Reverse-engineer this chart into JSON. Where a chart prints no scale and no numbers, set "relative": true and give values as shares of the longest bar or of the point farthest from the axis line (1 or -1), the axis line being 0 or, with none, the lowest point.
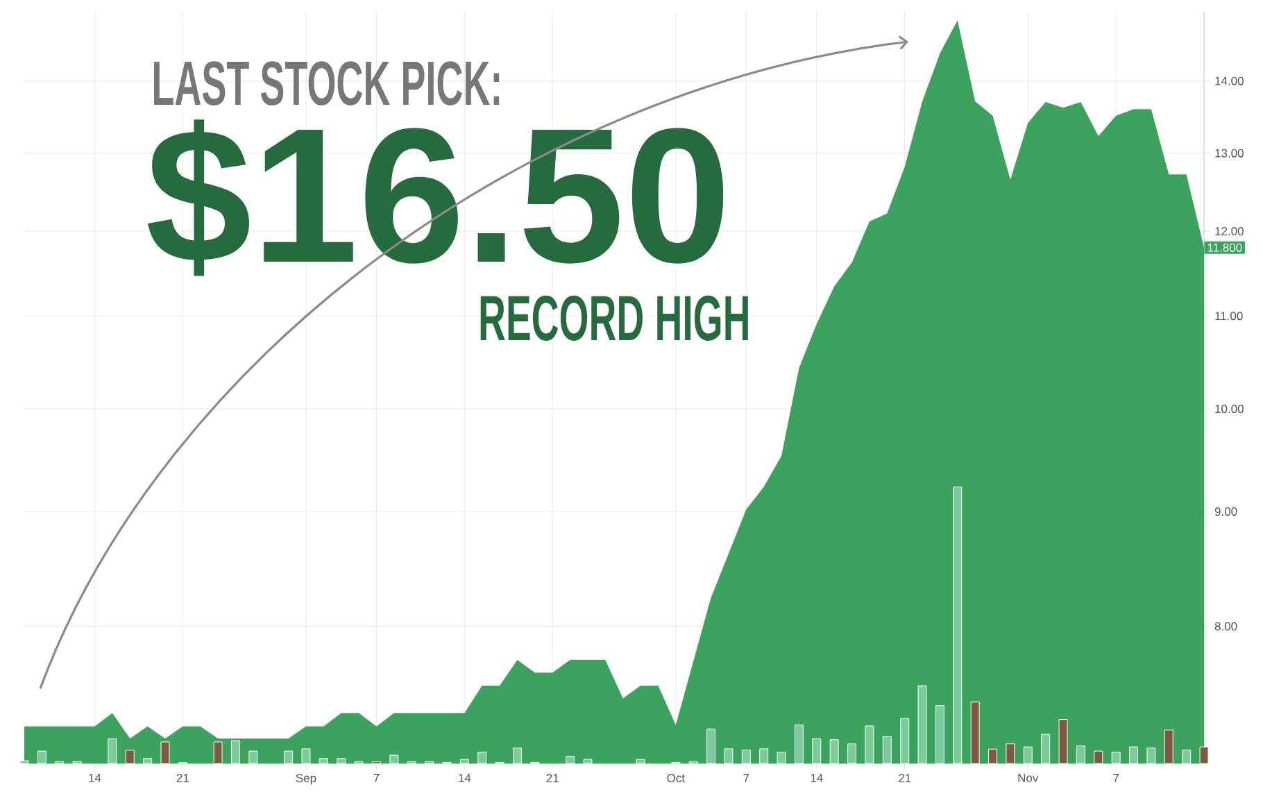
{
  "chart_data": [
    {
      "type": "area",
      "color": "#3ca35e",
      "log": true,
      "grid": true,
      "categories": [
        null,
        null,
        null,
        null,
        "14",
        null,
        null,
        null,
        null,
        "21",
        null,
        null,
        null,
        null,
        null,
        null,
        "Sep",
        null,
        null,
        null,
        "7",
        null,
        null,
        null,
        null,
        "14",
        null,
        null,
        null,
        null,
        "21",
        null,
        null,
        null,
        null,
        null,
        null,
        "Oct",
        null,
        null,
        null,
        "7",
        null,
        null,
        null,
        "14",
        null,
        null,
        null,
        null,
        "21",
        null,
        null,
        null,
        null,
        null,
        null,
        "Nov",
        null,
        null,
        null,
        null,
        "7",
        null,
        null,
        null,
        null,
        null
      ],
      "values": [
        7.22,
        7.22,
        7.22,
        7.22,
        7.22,
        7.32,
        7.13,
        7.22,
        7.13,
        7.22,
        7.22,
        7.13,
        7.13,
        7.13,
        7.13,
        7.13,
        7.22,
        7.22,
        7.32,
        7.32,
        7.22,
        7.32,
        7.32,
        7.32,
        7.32,
        7.32,
        7.53,
        7.53,
        7.73,
        7.63,
        7.63,
        7.73,
        7.73,
        7.73,
        7.43,
        7.53,
        7.53,
        7.23,
        7.72,
        8.24,
        8.62,
        9.02,
        9.23,
        9.53,
        10.43,
        10.91,
        11.34,
        11.62,
        12.12,
        12.22,
        12.82,
        13.71,
        14.4,
        14.9,
        13.71,
        13.51,
        12.65,
        13.41,
        13.7,
        13.62,
        13.7,
        13.23,
        13.51,
        13.6,
        13.6,
        12.72,
        12.72,
        11.8
      ],
      "ylim": [
        6.95,
        15.03
      ],
      "yticks": [
        {
          "value": 8,
          "label": "8.00"
        },
        {
          "value": 9,
          "label": "9.00"
        },
        {
          "value": 10,
          "label": "10.00"
        },
        {
          "value": 11,
          "label": "11.00"
        },
        {
          "value": 12,
          "label": "12.00"
        },
        {
          "value": 13,
          "label": "13.00"
        },
        {
          "value": 14,
          "label": "14.00"
        }
      ],
      "annotations": [
        "LAST STOCK PICK:",
        "$16.50",
        "RECORD HIGH",
        "11.800"
      ]
    },
    {
      "type": "bar",
      "relative": true,
      "tick_labels": false,
      "categories": [
        null,
        null,
        null,
        null,
        null,
        null,
        null,
        null,
        null,
        null,
        null,
        null,
        null,
        null,
        null,
        null,
        null,
        null,
        null,
        null,
        null,
        null,
        null,
        null,
        null,
        null,
        null,
        null,
        null,
        null,
        null,
        null,
        null,
        null,
        null,
        null,
        null,
        null,
        null,
        null,
        null,
        null,
        null,
        null,
        null,
        null,
        null,
        null,
        null,
        null,
        null,
        null,
        null,
        null,
        null,
        null,
        null,
        null,
        null,
        null,
        null,
        null,
        null,
        null,
        null,
        null,
        null,
        null
      ],
      "values": [
        0.01,
        0.045,
        0.007,
        0.007,
        null,
        0.09,
        0.048,
        0.018,
        0.078,
        0.003,
        null,
        0.078,
        0.083,
        0.045,
        null,
        0.045,
        0.053,
        0.018,
        0.018,
        0.007,
        0.006,
        0.03,
        0.007,
        0.007,
        0.004,
        0.015,
        0.041,
        0.004,
        0.056,
        0.004,
        null,
        0.026,
        0.015,
        null,
        null,
        0.015,
        null,
        0.004,
        0.007,
        0.125,
        0.053,
        0.049,
        0.053,
        0.041,
        0.14,
        0.09,
        0.086,
        0.071,
        0.136,
        0.098,
        0.163,
        0.281,
        0.209,
        1.0,
        0.223,
        0.052,
        0.071,
        0.06,
        0.106,
        0.159,
        0.064,
        0.045,
        0.041,
        0.06,
        0.056,
        0.121,
        0.049,
        0.06
      ],
      "colors": [
        "#7acc9b",
        "#7acc9b",
        "#7acc9b",
        "#7acc9b",
        "#7acc9b",
        "#7acc9b",
        "#7f5a43",
        "#7acc9b",
        "#7f5a43",
        "#7acc9b",
        "#7acc9b",
        "#7f5a43",
        "#7acc9b",
        "#7acc9b",
        "#7acc9b",
        "#7acc9b",
        "#7acc9b",
        "#7acc9b",
        "#7acc9b",
        "#7acc9b",
        "#7f5a43",
        "#7acc9b",
        "#7acc9b",
        "#7acc9b",
        "#7acc9b",
        "#7acc9b",
        "#7acc9b",
        "#7acc9b",
        "#7acc9b",
        "#7acc9b",
        "#7acc9b",
        "#7acc9b",
        "#7acc9b",
        "#7acc9b",
        "#7acc9b",
        "#7acc9b",
        "#7acc9b",
        "#7acc9b",
        "#7acc9b",
        "#7acc9b",
        "#7acc9b",
        "#7acc9b",
        "#7acc9b",
        "#7acc9b",
        "#7acc9b",
        "#7acc9b",
        "#7acc9b",
        "#7acc9b",
        "#7acc9b",
        "#7acc9b",
        "#7acc9b",
        "#7acc9b",
        "#7acc9b",
        "#7acc9b",
        "#7f5a43",
        "#7f5a43",
        "#7f5a43",
        "#7acc9b",
        "#7acc9b",
        "#7f5a43",
        "#7acc9b",
        "#7f5a43",
        "#7acc9b",
        "#7acc9b",
        "#7acc9b",
        "#7f5a43",
        "#7acc9b",
        "#7f5a43"
      ]
    }
  ]
}
